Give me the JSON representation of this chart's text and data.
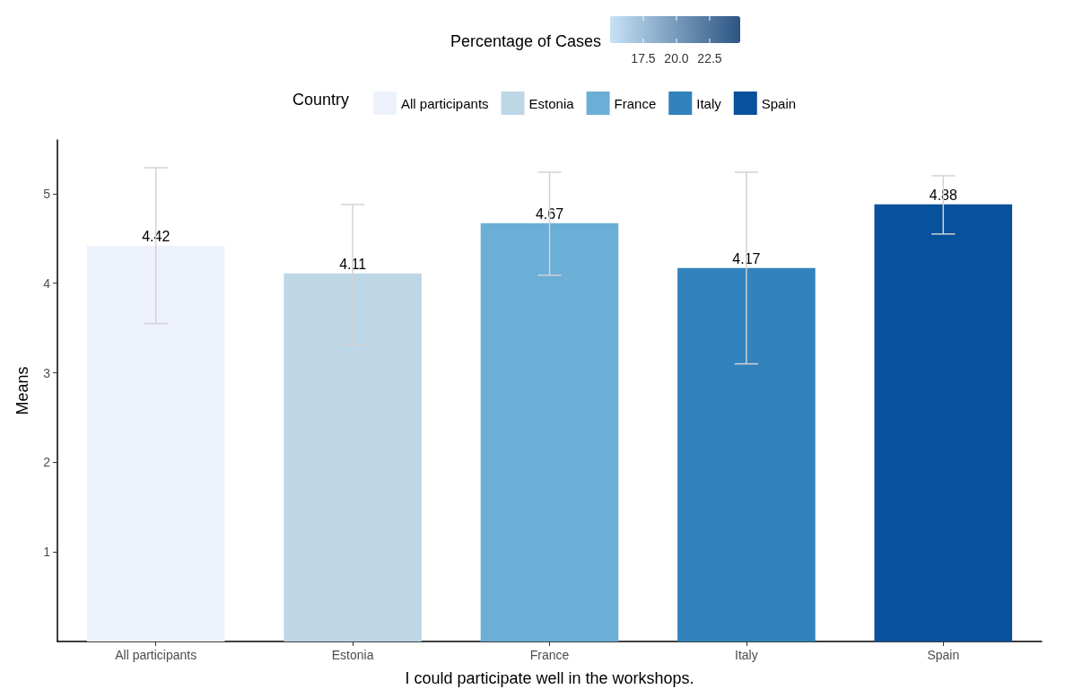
{
  "chart_data": {
    "type": "bar",
    "xlabel": "I could participate well in the workshops.",
    "ylabel": "Means",
    "legend_title": "Country",
    "clabel": "Percentage of Cases",
    "clim": [
      15.0,
      24.8
    ],
    "cticks": [
      {
        "value": 17.5,
        "label": "17.5"
      },
      {
        "value": 20,
        "label": "20.0"
      },
      {
        "value": 22.5,
        "label": "22.5"
      }
    ],
    "categories": [
      "All participants",
      "Estonia",
      "France",
      "Italy",
      "Spain"
    ],
    "series": [
      {
        "name": "All participants",
        "color": "#eef2fd",
        "values": [
          4.42,
          null,
          null,
          null,
          null
        ],
        "errors": [
          [
            3.55,
            5.29
          ],
          null,
          null,
          null,
          null
        ]
      },
      {
        "name": "Estonia",
        "color": "#bdd7e7",
        "values": [
          null,
          4.11,
          null,
          null,
          null
        ],
        "errors": [
          null,
          [
            3.31,
            4.88
          ],
          null,
          null,
          null
        ]
      },
      {
        "name": "France",
        "color": "#6baed6",
        "values": [
          null,
          null,
          4.67,
          null,
          null
        ],
        "errors": [
          null,
          null,
          [
            4.09,
            5.24
          ],
          null,
          null
        ]
      },
      {
        "name": "Italy",
        "color": "#3182bd",
        "values": [
          null,
          null,
          null,
          4.17,
          null
        ],
        "errors": [
          null,
          null,
          null,
          [
            3.1,
            5.24
          ],
          null
        ]
      },
      {
        "name": "Spain",
        "color": "#08519c",
        "values": [
          null,
          null,
          null,
          null,
          4.88
        ],
        "errors": [
          null,
          null,
          null,
          null,
          [
            4.55,
            5.2
          ]
        ]
      }
    ],
    "ylim": [
      0,
      5.6
    ],
    "yticks": [
      1,
      2,
      3,
      4,
      5
    ],
    "stacked": true,
    "grid": false,
    "legend": "top",
    "data_labels": true
  }
}
